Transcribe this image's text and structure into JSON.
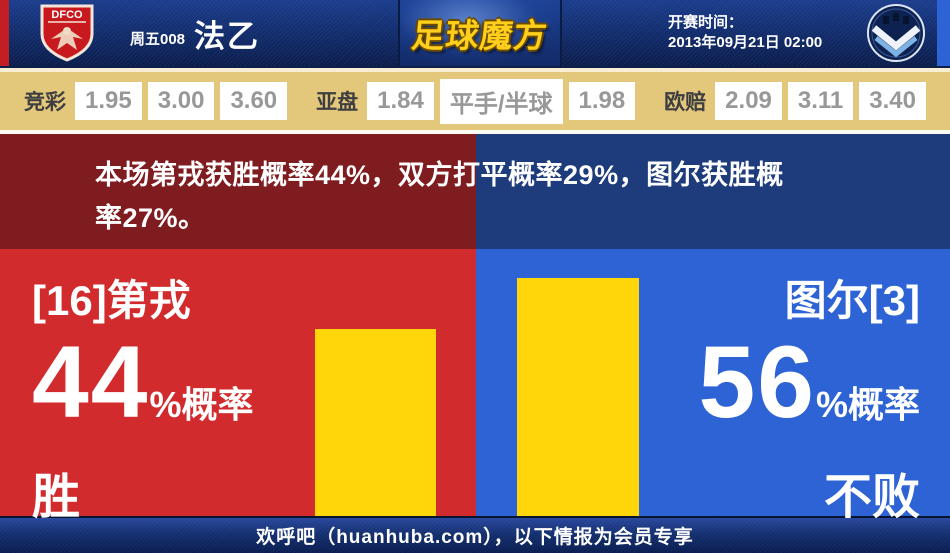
{
  "header": {
    "match_code": "周五008",
    "league": "法乙",
    "site_logo": "足球魔方",
    "kickoff_label": "开赛时间：",
    "kickoff_time": "2013年09月21日 02:00",
    "home_logo_text": "DFCO"
  },
  "odds": {
    "jingcai_label": "竞彩",
    "jingcai": [
      "1.95",
      "3.00",
      "3.60"
    ],
    "yapan_label": "亚盘",
    "yapan": [
      "1.84",
      "平手/半球",
      "1.98"
    ],
    "oupei_label": "欧赔",
    "oupei": [
      "2.09",
      "3.11",
      "3.40"
    ]
  },
  "summary": "本场第戎获胜概率44%，双方打平概率29%，图尔获胜概率27%。",
  "home": {
    "name": "[16]第戎",
    "prob": "44",
    "prob_unit": "%概率",
    "outcome": "胜"
  },
  "away": {
    "name": "图尔[3]",
    "prob": "56",
    "prob_unit": "%概率",
    "outcome": "不败"
  },
  "footer": "欢呼吧（huanhuba.com），以下情报为会员专享",
  "chart_data": {
    "type": "bar",
    "categories": [
      "第戎 胜",
      "图尔 不败"
    ],
    "values": [
      44,
      56
    ],
    "ylim": [
      0,
      90
    ],
    "bar_color": "#ffd60a"
  },
  "colors": {
    "accent_red": "#d22b2e",
    "dark_red": "#7f1c20",
    "accent_blue": "#2d63d4",
    "dark_blue": "#1e3c7c",
    "bar_yellow": "#ffd60a",
    "odds_bg": "#e3c87c"
  }
}
